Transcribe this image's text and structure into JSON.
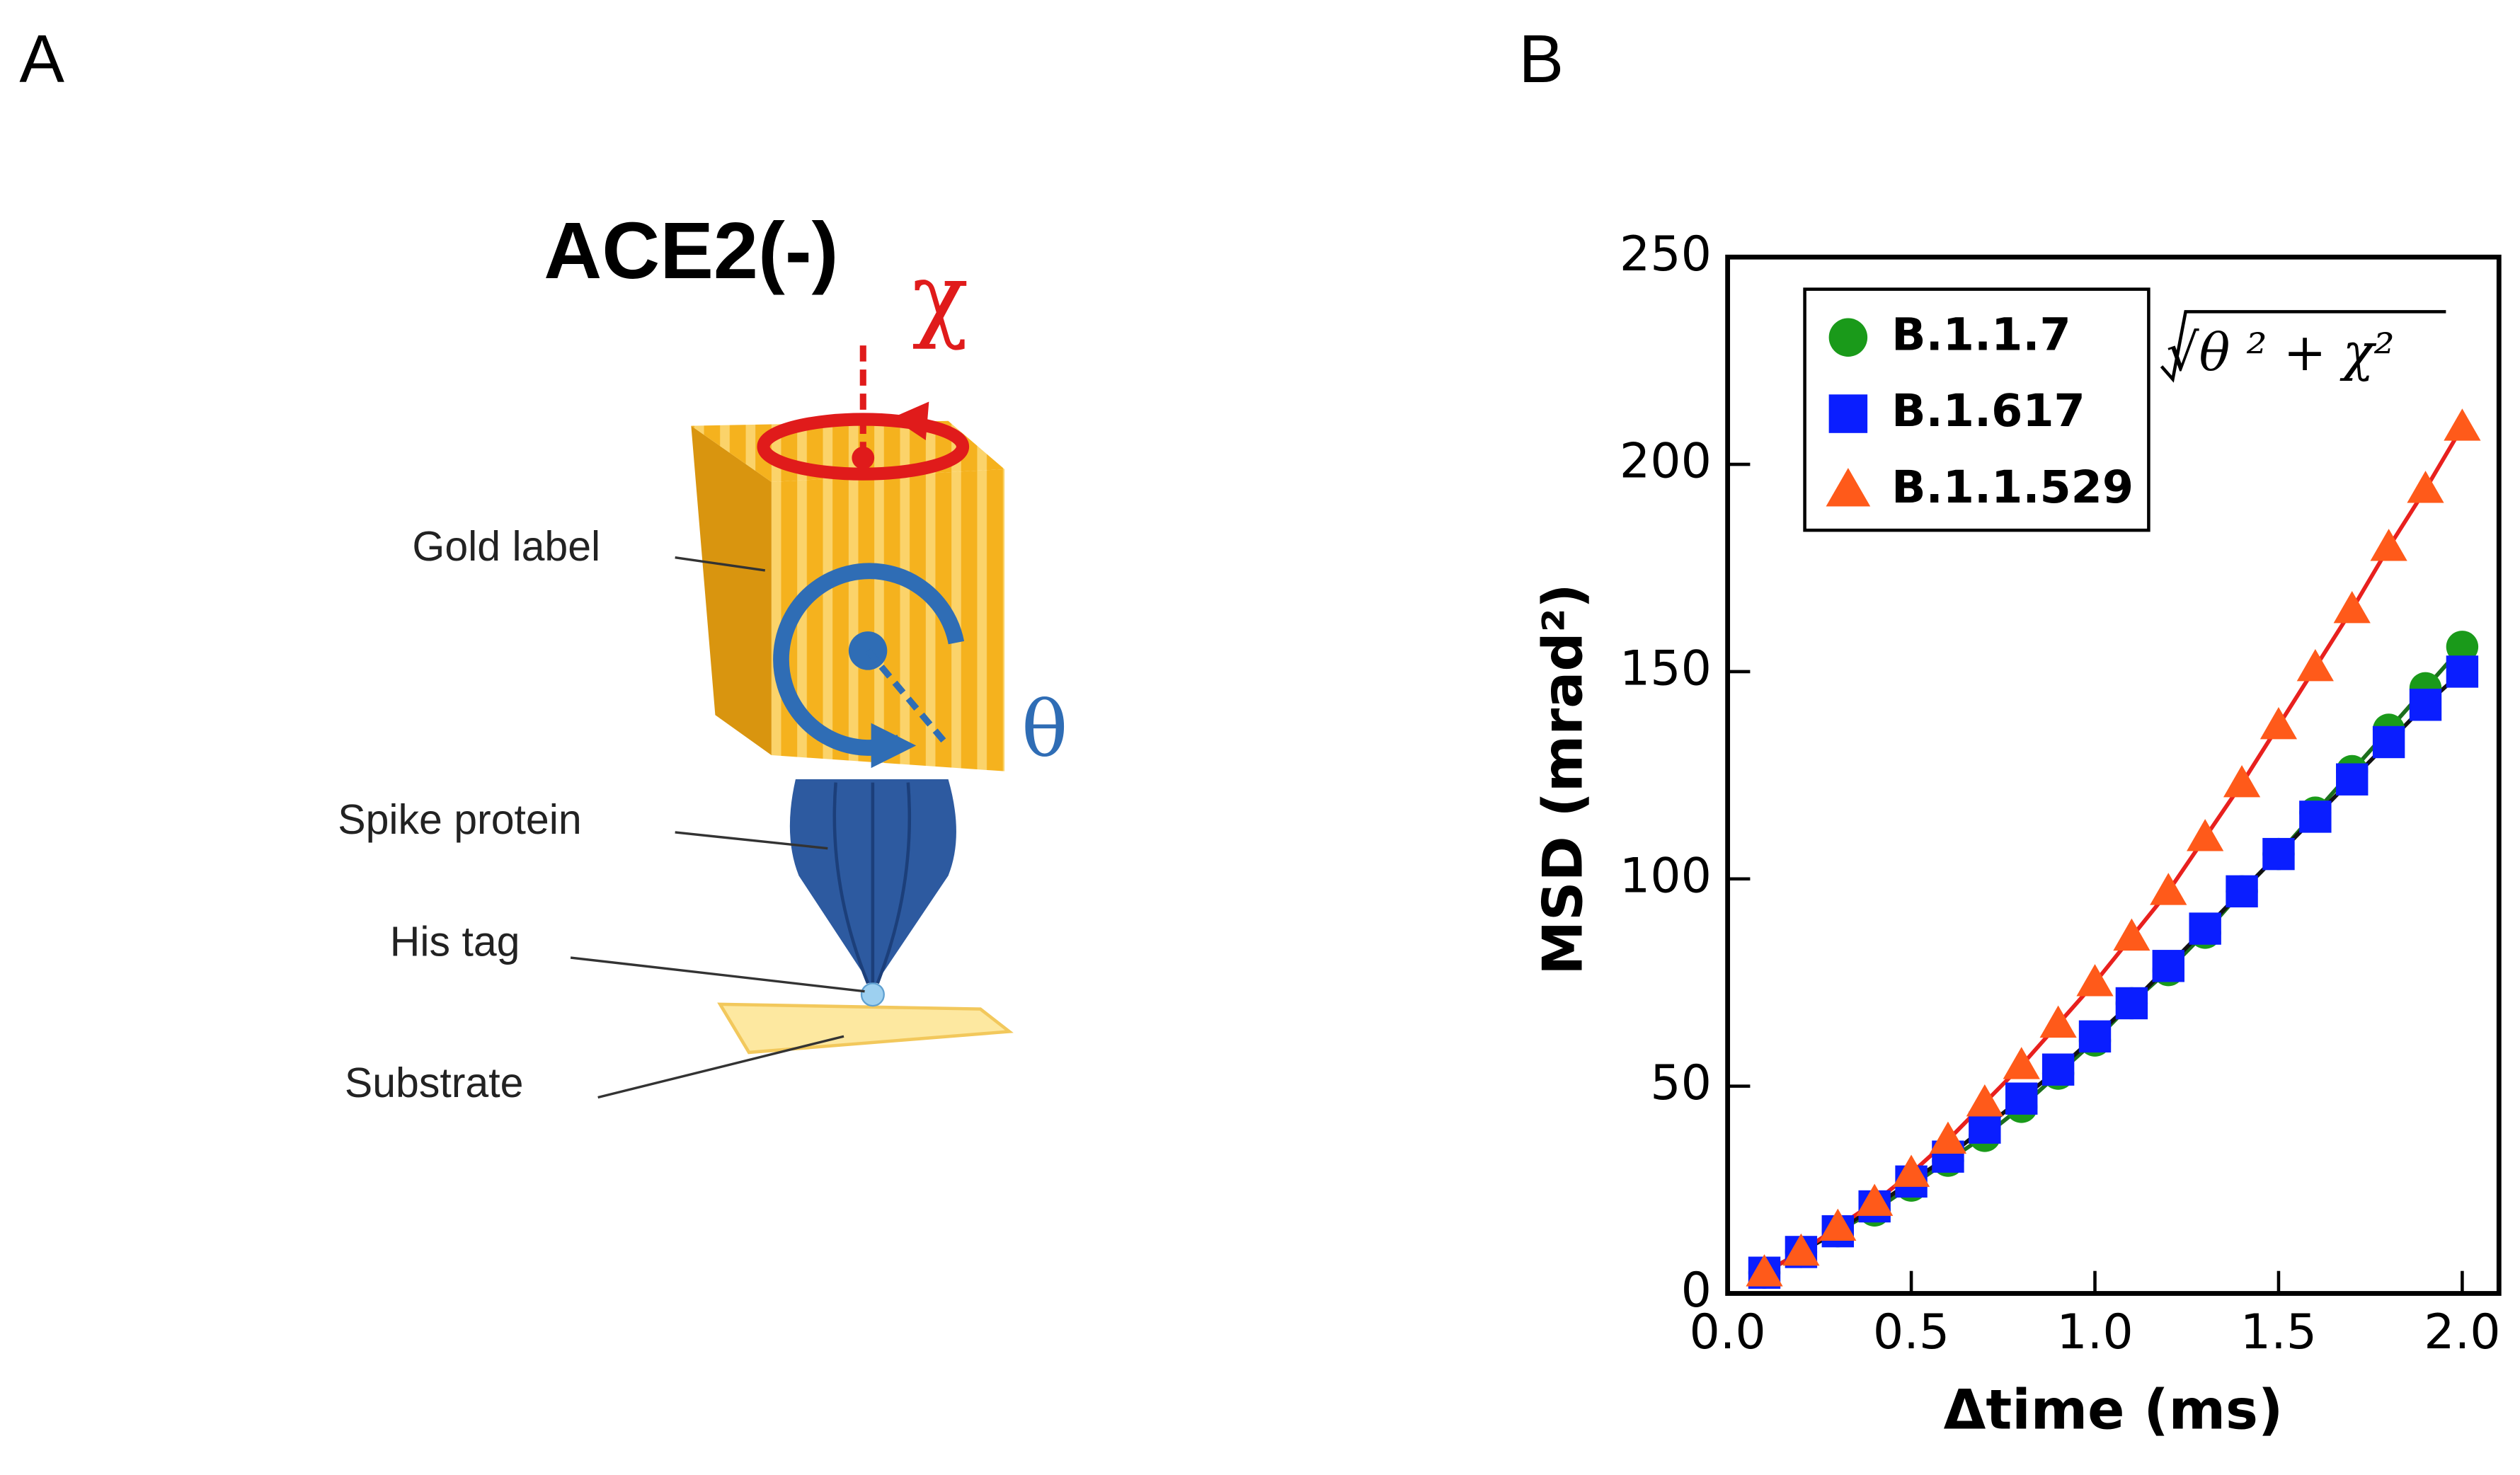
{
  "panel_labels": [
    "A",
    "B"
  ],
  "diagram": {
    "title": "ACE2(-)",
    "chi": "χ",
    "theta": "θ",
    "labels": [
      "Gold label",
      "Spike protein",
      "His tag",
      "Substrate"
    ]
  },
  "chart_data": {
    "type": "scatter",
    "x_label": "Δtime (ms)",
    "y_label": "MSD (mrad²)",
    "annotation": "√θ ² + χ²",
    "x": [
      0.1,
      0.2,
      0.3,
      0.4,
      0.5,
      0.6,
      0.7,
      0.8,
      0.9,
      1.0,
      1.1,
      1.2,
      1.3,
      1.4,
      1.5,
      1.6,
      1.7,
      1.8,
      1.9,
      2.0
    ],
    "series": [
      {
        "name": "B.1.1.7",
        "color": "#1a9a1a",
        "line_color": "#1c6e1c",
        "marker": "circle",
        "values": [
          5,
          10,
          15,
          20,
          26,
          32,
          38,
          45,
          53,
          61,
          70,
          78,
          87,
          97,
          106,
          116,
          126,
          136,
          146,
          156
        ]
      },
      {
        "name": "B.1.617",
        "color": "#0a1eff",
        "line_color": "#111111",
        "marker": "square",
        "values": [
          5,
          10,
          15,
          21,
          27,
          33,
          40,
          47,
          54,
          62,
          70,
          79,
          88,
          97,
          106,
          115,
          124,
          133,
          142,
          150
        ]
      },
      {
        "name": "B.1.1.529",
        "color": "#ff5a1a",
        "line_color": "#e8201e",
        "marker": "triangle",
        "values": [
          5,
          10,
          16,
          22,
          29,
          37,
          46,
          55,
          65,
          75,
          86,
          97,
          110,
          123,
          137,
          151,
          165,
          180,
          194,
          209
        ]
      }
    ],
    "xlim": [
      0,
      2.1
    ],
    "ylim": [
      0,
      250
    ],
    "xticks": [
      {
        "value": 0,
        "label": "0.0"
      },
      0.5,
      {
        "value": 1,
        "label": "1.0"
      },
      1.5,
      {
        "value": 2,
        "label": "2.0"
      }
    ],
    "yticks": [
      0,
      50,
      100,
      150,
      200,
      250
    ],
    "legend": "upper-left"
  }
}
